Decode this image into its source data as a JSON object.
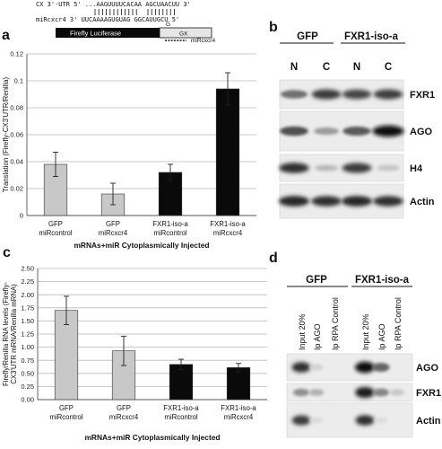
{
  "figure": {
    "panel_a": "a",
    "panel_b": "b",
    "panel_c": "c",
    "panel_d": "d",
    "colors": {
      "control": "#c8c8c8",
      "fxr": "#0a0a0a",
      "luc_box": "#0a0a0a",
      "gx_box": "#e6e6e6"
    }
  },
  "construct": {
    "line1": "CX 3'-UTR 5' ...AAGUUUUCACAA AGCUAACUU 3'",
    "line2": "miRcxcr4   3' UUCAAAAGUGUAG GGCAUUGCU 5'",
    "luciferase_label": "Firefly Luciferase",
    "gx_label": "GX",
    "g_label": "G",
    "mirna_label": "miRcxcr4"
  },
  "chart_data": [
    {
      "type": "bar",
      "panel": "a",
      "categories": [
        [
          "GFP",
          "miRcontrol"
        ],
        [
          "GFP",
          "miRcxcr4"
        ],
        [
          "FXR1-iso-a",
          "miRcontrol"
        ],
        [
          "FXR1-iso-a",
          "miRcxcr4"
        ]
      ],
      "values": [
        0.038,
        0.016,
        0.032,
        0.094
      ],
      "errors": [
        0.009,
        0.008,
        0.006,
        0.012
      ],
      "ylabel": "Translation (Firefly-CX3'UTR/Renilla)",
      "xlabel": "mRNAs+miR Cytoplasmically Injected",
      "ylim": [
        0,
        0.12
      ],
      "yticks": [
        "0",
        "0.02",
        "0.04",
        "0.06",
        "0.08",
        "0.1",
        "0.12"
      ],
      "grid": true
    },
    {
      "type": "bar",
      "panel": "c",
      "categories": [
        [
          "GFP",
          "miRcontrol"
        ],
        [
          "GFP",
          "miRcxcr4"
        ],
        [
          "FXR1-iso-a",
          "miRcontrol"
        ],
        [
          "FXR1-iso-a",
          "miRcxcr4"
        ]
      ],
      "values": [
        1.7,
        0.93,
        0.67,
        0.61
      ],
      "errors": [
        0.27,
        0.28,
        0.1,
        0.08
      ],
      "ylabel": "Firefly/Renilla RNA levels (Firefly-CX3'UTR mRNA/Renilla mRNA)",
      "xlabel": "mRNAs+miR Cytoplasmically Injected",
      "ylim": [
        0,
        2.5
      ],
      "yticks": [
        "0.00",
        "0.25",
        "0.50",
        "0.75",
        "1.00",
        "1.25",
        "1.50",
        "1.75",
        "2.00",
        "2.25",
        "2.50"
      ],
      "grid": true
    }
  ],
  "blot_b": {
    "groups": [
      "GFP",
      "FXR1-iso-a"
    ],
    "lanes": [
      "N",
      "C",
      "N",
      "C"
    ],
    "rows": [
      "FXR1",
      "AGO",
      "H4",
      "Actin"
    ]
  },
  "blot_d": {
    "groups": [
      "GFP",
      "FXR1-iso-a"
    ],
    "lanes": [
      "Input 20%",
      "Ip AGO",
      "Ip RPA Control",
      "Input 20%",
      "Ip AGO",
      "Ip RPA Control"
    ],
    "rows": [
      "AGO",
      "FXR1",
      "Actin"
    ]
  }
}
